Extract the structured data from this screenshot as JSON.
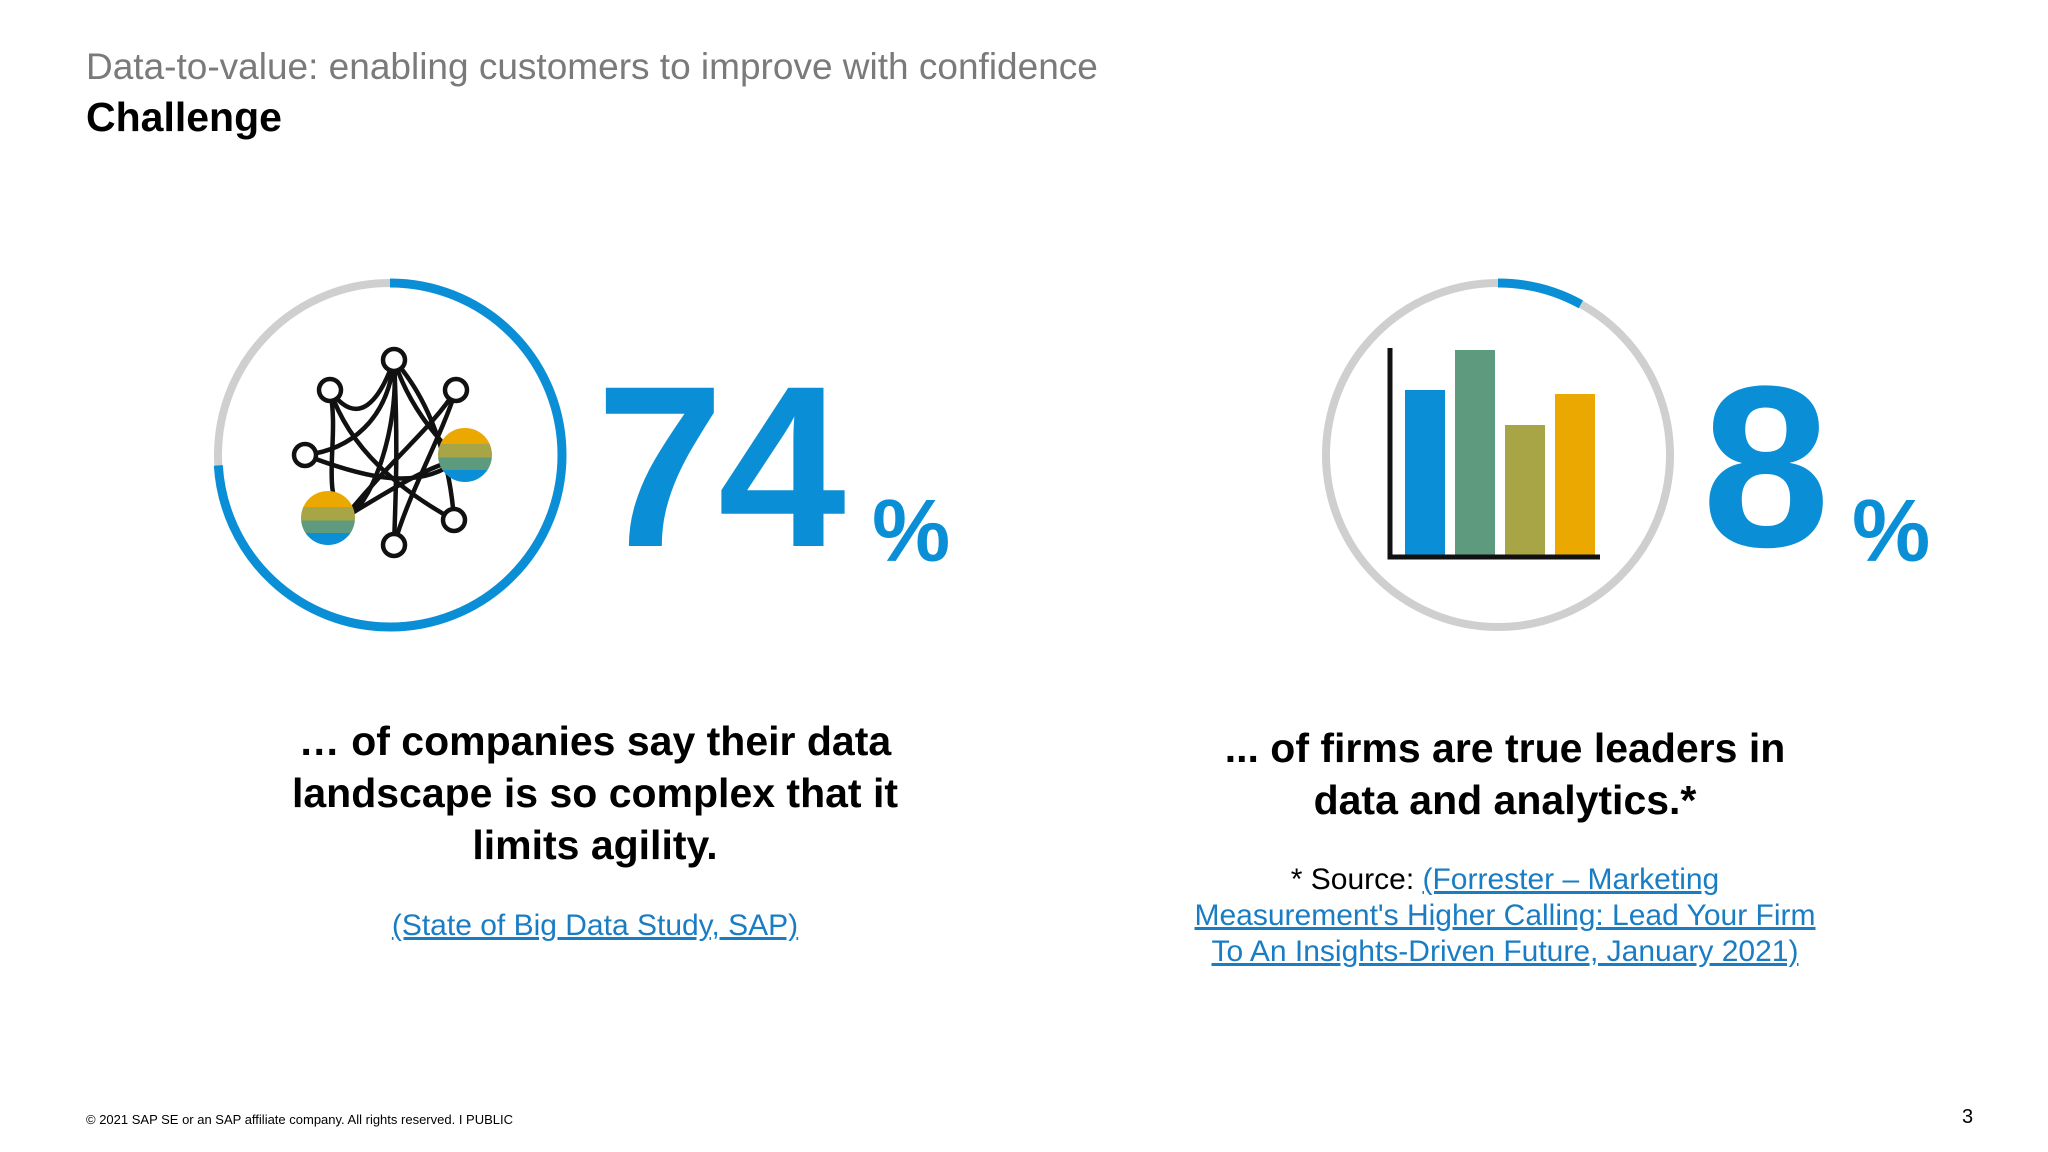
{
  "header": {
    "subtitle": "Data-to-value: enabling customers to improve with confidence",
    "title": "Challenge"
  },
  "stat_left": {
    "value": "74",
    "unit": "%",
    "ring_progress": 0.74,
    "caption_lines": [
      "… of companies say their data",
      "landscape is so complex that it",
      "limits agility."
    ],
    "source_link": "(State of Big Data Study, SAP)"
  },
  "stat_right": {
    "value": "8",
    "unit": "%",
    "ring_progress": 0.08,
    "caption_lines": [
      "... of firms are true leaders in",
      "data and analytics.*"
    ],
    "source_prefix": "* Source: ",
    "source_link_lines": [
      "(Forrester – Marketing",
      "Measurement's Higher Calling: Lead Your Firm",
      "To An Insights-Driven Future, January 2021)"
    ]
  },
  "footer": {
    "copyright": "© 2021 SAP SE or an SAP affiliate company. All rights reserved.   I   PUBLIC",
    "page_number": "3"
  },
  "colors": {
    "accent_blue": "#0a8fd6",
    "ring_gray": "#cfcfcf",
    "link_blue": "#1a7dc4",
    "bar_green": "#5e9b7e",
    "bar_olive": "#a7a545",
    "bar_gold": "#eba800"
  },
  "icons": {
    "left": "network-nodes-icon",
    "right": "bar-chart-icon"
  }
}
